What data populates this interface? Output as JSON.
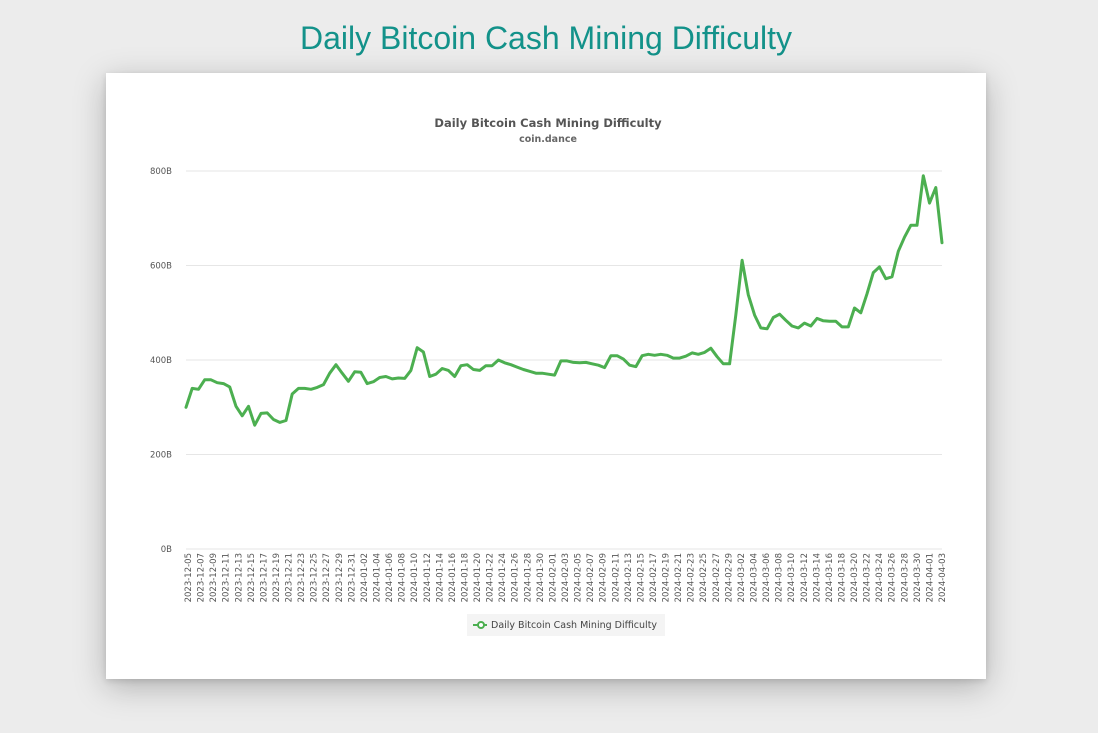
{
  "page": {
    "title": "Daily Bitcoin Cash Mining Difficulty"
  },
  "colors": {
    "title": "#13928a",
    "series": "#4caf50",
    "grid": "#e6e6e6"
  },
  "chart_data": {
    "type": "line",
    "title": "Daily Bitcoin Cash Mining Difficulty",
    "subtitle": "coin.dance",
    "xlabel": "",
    "ylabel": "",
    "ylim": [
      0,
      800
    ],
    "y_ticks": [
      0,
      200,
      400,
      600,
      800
    ],
    "y_tick_labels": [
      "0B",
      "200B",
      "400B",
      "600B",
      "800B"
    ],
    "x_tick_labels": [
      "2023-12-05",
      "2023-12-07",
      "2023-12-09",
      "2023-12-11",
      "2023-12-13",
      "2023-12-15",
      "2023-12-17",
      "2023-12-19",
      "2023-12-21",
      "2023-12-23",
      "2023-12-25",
      "2023-12-27",
      "2023-12-29",
      "2023-12-31",
      "2024-01-02",
      "2024-01-04",
      "2024-01-06",
      "2024-01-08",
      "2024-01-10",
      "2024-01-12",
      "2024-01-14",
      "2024-01-16",
      "2024-01-18",
      "2024-01-20",
      "2024-01-22",
      "2024-01-24",
      "2024-01-26",
      "2024-01-28",
      "2024-01-30",
      "2024-02-01",
      "2024-02-03",
      "2024-02-05",
      "2024-02-07",
      "2024-02-09",
      "2024-02-11",
      "2024-02-13",
      "2024-02-15",
      "2024-02-17",
      "2024-02-19",
      "2024-02-21",
      "2024-02-23",
      "2024-02-25",
      "2024-02-27",
      "2024-02-29",
      "2024-03-02",
      "2024-03-04",
      "2024-03-06",
      "2024-03-08",
      "2024-03-10",
      "2024-03-12",
      "2024-03-14",
      "2024-03-16",
      "2024-03-18",
      "2024-03-20",
      "2024-03-22",
      "2024-03-24",
      "2024-03-26",
      "2024-03-28",
      "2024-03-30",
      "2024-04-01",
      "2024-04-03"
    ],
    "legend": {
      "position": "bottom-center"
    },
    "series": [
      {
        "name": "Daily Bitcoin Cash Mining Difficulty",
        "unit": "B",
        "values": [
          300,
          340,
          338,
          358,
          358,
          352,
          350,
          343,
          302,
          282,
          302,
          262,
          287,
          288,
          274,
          268,
          272,
          328,
          340,
          340,
          338,
          342,
          348,
          372,
          390,
          372,
          355,
          375,
          374,
          350,
          354,
          363,
          365,
          360,
          362,
          361,
          378,
          426,
          417,
          365,
          370,
          382,
          378,
          365,
          388,
          390,
          380,
          378,
          388,
          388,
          400,
          394,
          390,
          385,
          380,
          376,
          372,
          372,
          370,
          368,
          398,
          398,
          395,
          394,
          395,
          392,
          389,
          384,
          409,
          409,
          402,
          389,
          386,
          409,
          412,
          410,
          412,
          410,
          404,
          404,
          408,
          415,
          412,
          416,
          425,
          407,
          392,
          392,
          495,
          611,
          538,
          495,
          468,
          466,
          490,
          497,
          484,
          472,
          468,
          478,
          472,
          488,
          483,
          482,
          482,
          470,
          470,
          510,
          500,
          540,
          585,
          597,
          572,
          576,
          630,
          660,
          685,
          685,
          790,
          732,
          765,
          648
        ]
      }
    ]
  }
}
